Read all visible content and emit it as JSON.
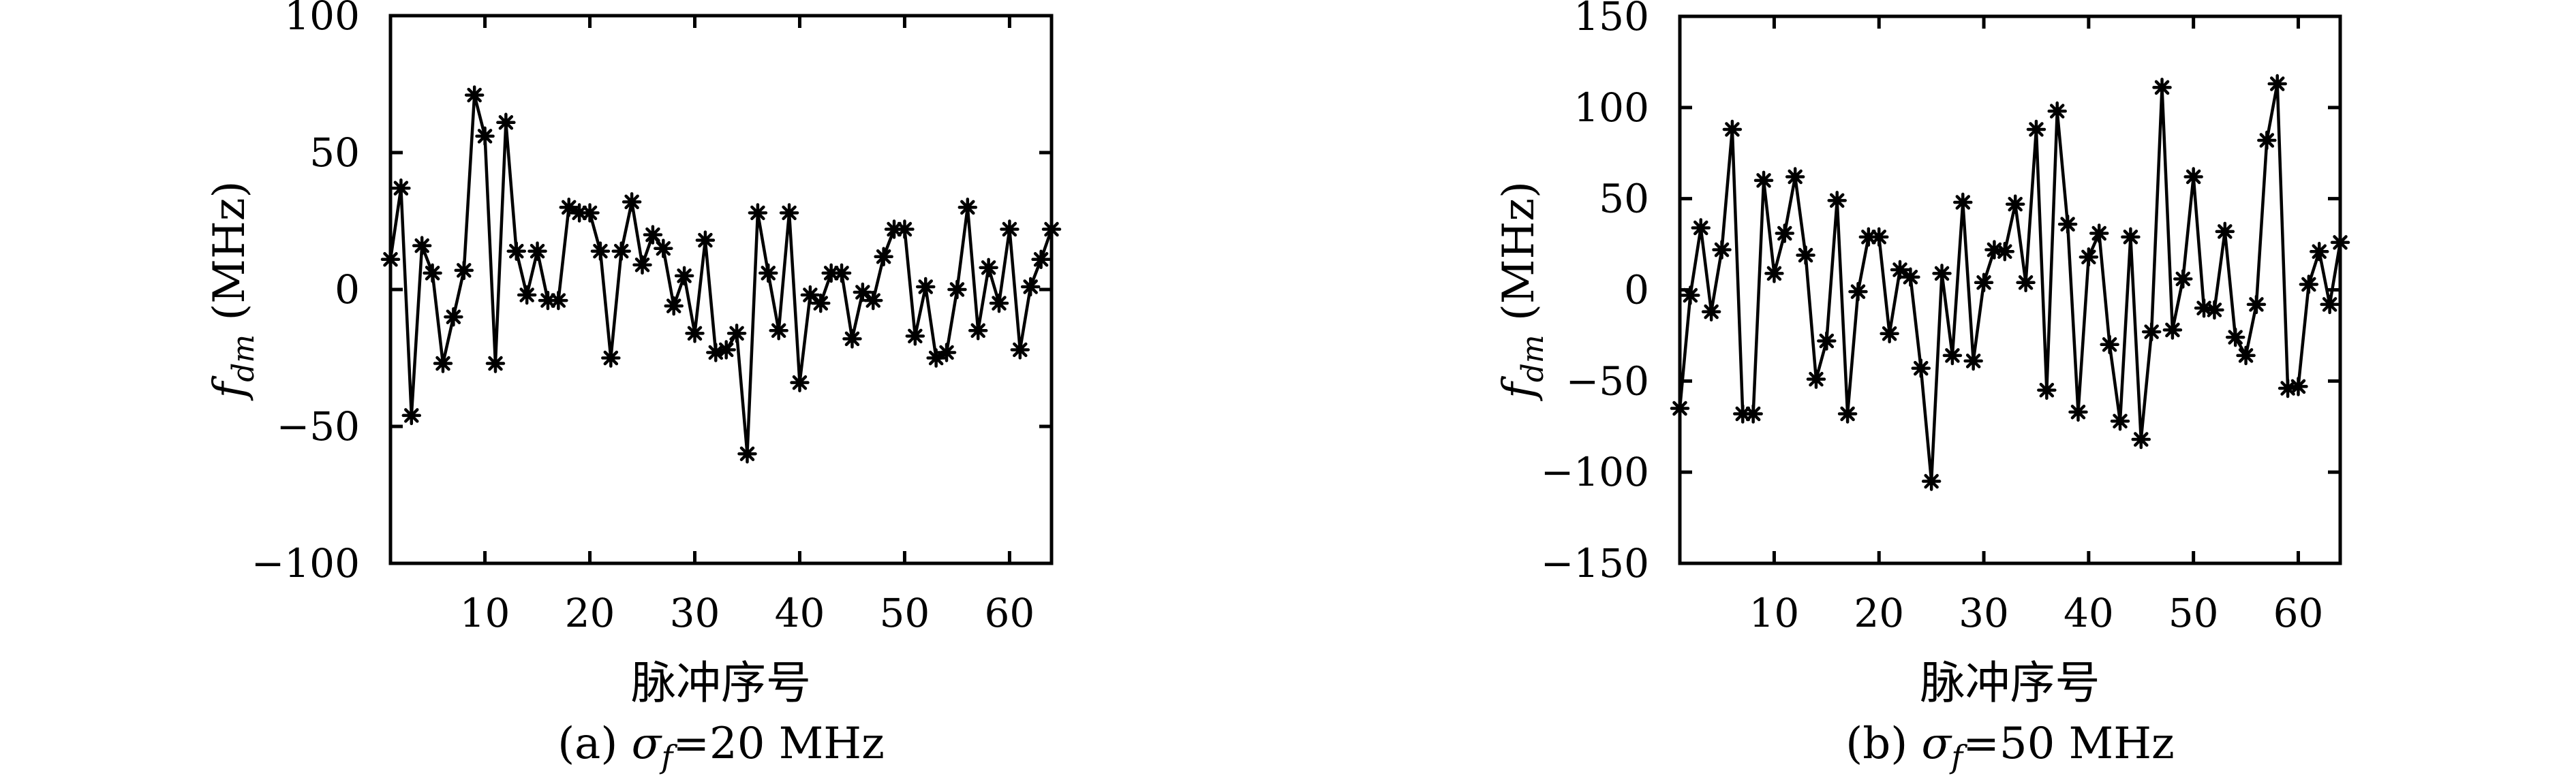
{
  "figure": {
    "kind": "scientific-figure",
    "background_color": "#ffffff",
    "ink_color": "#000000",
    "panel_count": 2
  },
  "chart_data": [
    {
      "type": "line",
      "panel": "a",
      "caption": {
        "prefix": "(a) ",
        "symbol": "σ",
        "symbol_subscript": "f",
        "suffix": "=20 MHz"
      },
      "xlabel": "脉冲序号",
      "ylabel": {
        "symbol": "f",
        "subscript": "dm",
        "unit": " (MHz)"
      },
      "marker": "asterisk",
      "grid": false,
      "legend": "none",
      "xlim": [
        1,
        64
      ],
      "ylim": [
        -100,
        100
      ],
      "xticks": [
        10,
        20,
        30,
        40,
        50,
        60
      ],
      "yticks": [
        -100,
        -50,
        0,
        50,
        100
      ],
      "x_start": 1,
      "values": [
        11,
        37,
        -46,
        16,
        6,
        -27,
        -10,
        7,
        71,
        56,
        -27,
        61,
        14,
        -2,
        14,
        -4,
        -4,
        30,
        28,
        28,
        14,
        -25,
        14,
        32,
        9,
        20,
        15,
        -6,
        5,
        -16,
        18,
        -23,
        -22,
        -16,
        -60,
        28,
        6,
        -15,
        28,
        -34,
        -2,
        -5,
        6,
        6,
        -18,
        -1,
        -4,
        12,
        22,
        22,
        -17,
        1,
        -25,
        -23,
        0,
        30,
        -15,
        8,
        -5,
        22,
        -22,
        1,
        11,
        22
      ]
    },
    {
      "type": "line",
      "panel": "b",
      "caption": {
        "prefix": "(b) ",
        "symbol": "σ",
        "symbol_subscript": "f",
        "suffix": "=50 MHz"
      },
      "xlabel": "脉冲序号",
      "ylabel": {
        "symbol": "f",
        "subscript": "dm",
        "unit": " (MHz)"
      },
      "marker": "asterisk",
      "grid": false,
      "legend": "none",
      "xlim": [
        1,
        64
      ],
      "ylim": [
        -150,
        150
      ],
      "xticks": [
        10,
        20,
        30,
        40,
        50,
        60
      ],
      "yticks": [
        -150,
        -100,
        -50,
        0,
        50,
        100,
        150
      ],
      "x_start": 1,
      "values": [
        -65,
        -3,
        34,
        -12,
        22,
        88,
        -68,
        -68,
        60,
        9,
        31,
        62,
        19,
        -49,
        -28,
        49,
        -68,
        -1,
        29,
        29,
        -24,
        11,
        7,
        -43,
        -105,
        9,
        -36,
        48,
        -39,
        4,
        22,
        21,
        47,
        4,
        88,
        -55,
        98,
        36,
        -67,
        18,
        31,
        -30,
        -72,
        29,
        -82,
        -23,
        111,
        -22,
        6,
        62,
        -10,
        -11,
        32,
        -26,
        -36,
        -8,
        82,
        113,
        -54,
        -53,
        3,
        21,
        -8,
        26
      ]
    }
  ]
}
